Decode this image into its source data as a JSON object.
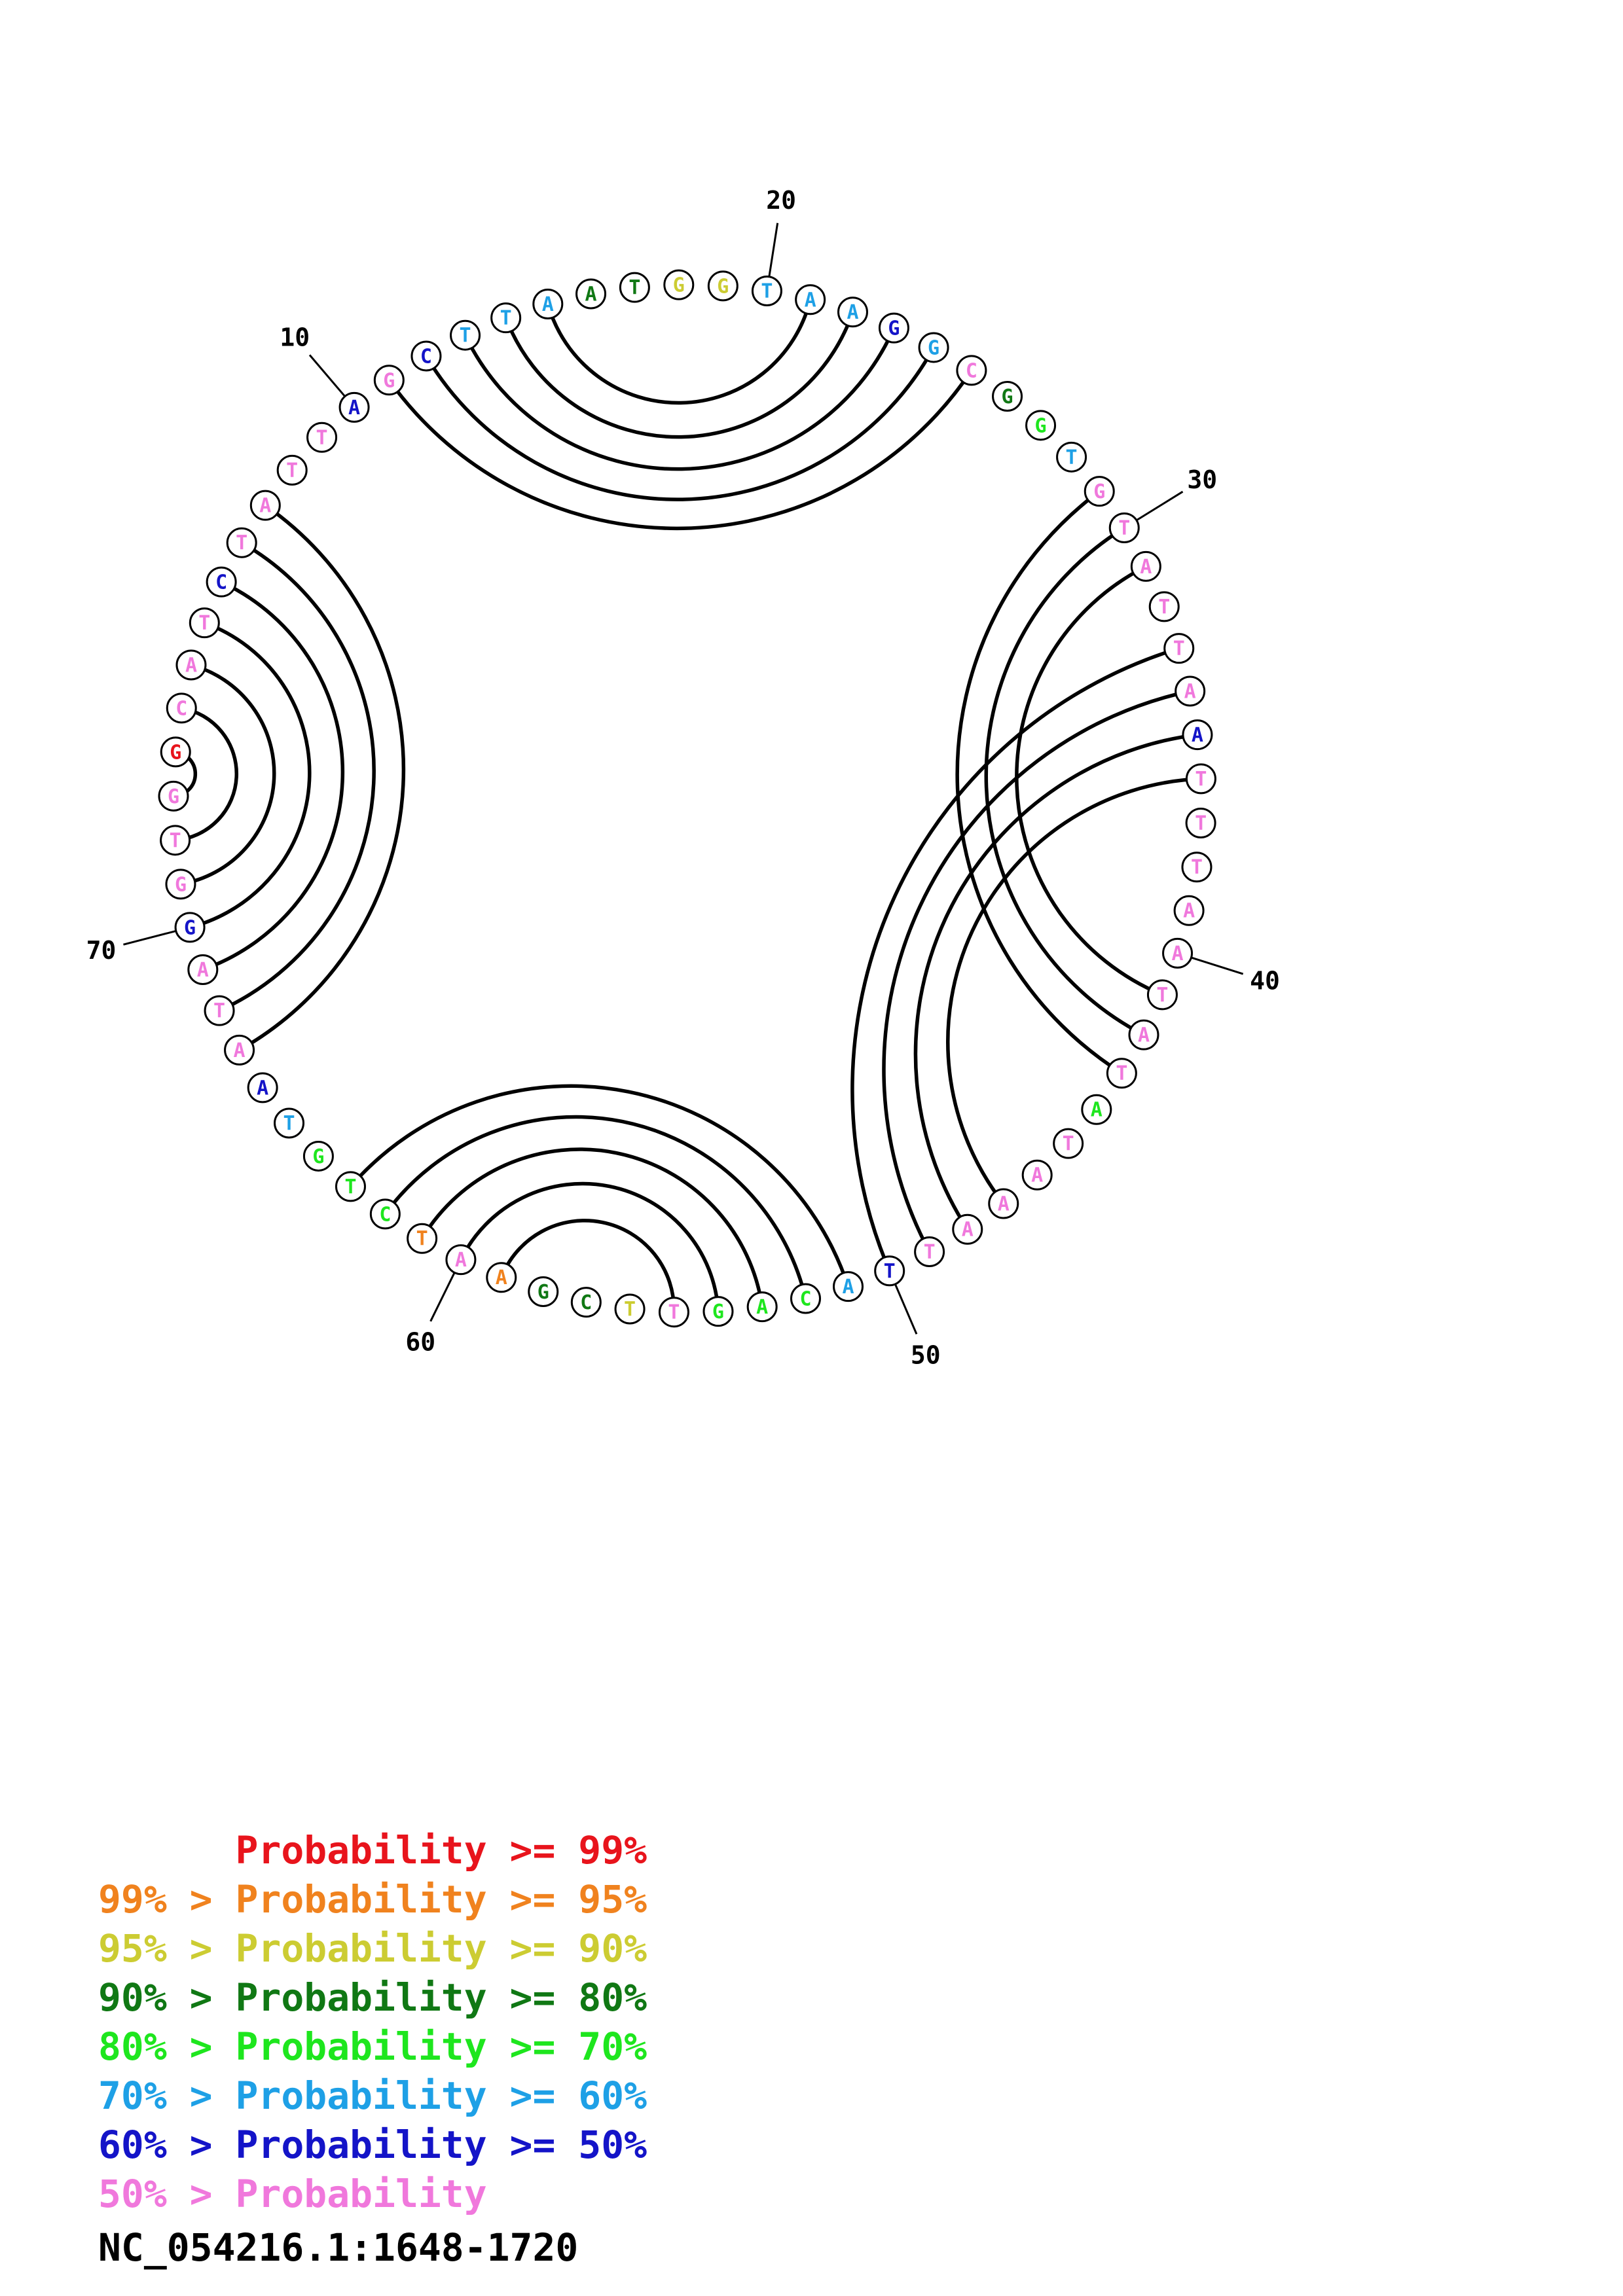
{
  "diagram": {
    "sequence_id": "NC_054216.1:1648-1720",
    "colors": {
      "red": "#e8141c",
      "orange": "#f0821e",
      "yellow": "#cccc32",
      "dkgreen": "#107814",
      "green": "#1ee61e",
      "cyan": "#1ea0e6",
      "blue": "#1414c8",
      "pink": "#f078dc"
    },
    "nucleotides": [
      {
        "base": "G",
        "color": "red"
      },
      {
        "base": "C",
        "color": "pink"
      },
      {
        "base": "A",
        "color": "pink"
      },
      {
        "base": "T",
        "color": "pink"
      },
      {
        "base": "C",
        "color": "blue"
      },
      {
        "base": "T",
        "color": "pink"
      },
      {
        "base": "A",
        "color": "pink"
      },
      {
        "base": "T",
        "color": "pink"
      },
      {
        "base": "T",
        "color": "pink"
      },
      {
        "base": "A",
        "color": "blue"
      },
      {
        "base": "G",
        "color": "pink"
      },
      {
        "base": "C",
        "color": "blue"
      },
      {
        "base": "T",
        "color": "cyan"
      },
      {
        "base": "T",
        "color": "cyan"
      },
      {
        "base": "A",
        "color": "cyan"
      },
      {
        "base": "A",
        "color": "dkgreen"
      },
      {
        "base": "T",
        "color": "dkgreen"
      },
      {
        "base": "G",
        "color": "yellow"
      },
      {
        "base": "G",
        "color": "yellow"
      },
      {
        "base": "T",
        "color": "cyan"
      },
      {
        "base": "A",
        "color": "cyan"
      },
      {
        "base": "A",
        "color": "cyan"
      },
      {
        "base": "G",
        "color": "blue"
      },
      {
        "base": "G",
        "color": "cyan"
      },
      {
        "base": "C",
        "color": "pink"
      },
      {
        "base": "G",
        "color": "dkgreen"
      },
      {
        "base": "G",
        "color": "green"
      },
      {
        "base": "T",
        "color": "cyan"
      },
      {
        "base": "G",
        "color": "pink"
      },
      {
        "base": "T",
        "color": "pink"
      },
      {
        "base": "A",
        "color": "pink"
      },
      {
        "base": "T",
        "color": "pink"
      },
      {
        "base": "T",
        "color": "pink"
      },
      {
        "base": "A",
        "color": "pink"
      },
      {
        "base": "A",
        "color": "blue"
      },
      {
        "base": "T",
        "color": "pink"
      },
      {
        "base": "T",
        "color": "pink"
      },
      {
        "base": "T",
        "color": "pink"
      },
      {
        "base": "A",
        "color": "pink"
      },
      {
        "base": "A",
        "color": "pink"
      },
      {
        "base": "T",
        "color": "pink"
      },
      {
        "base": "A",
        "color": "pink"
      },
      {
        "base": "T",
        "color": "pink"
      },
      {
        "base": "A",
        "color": "green"
      },
      {
        "base": "T",
        "color": "pink"
      },
      {
        "base": "A",
        "color": "pink"
      },
      {
        "base": "A",
        "color": "pink"
      },
      {
        "base": "A",
        "color": "pink"
      },
      {
        "base": "T",
        "color": "pink"
      },
      {
        "base": "T",
        "color": "blue"
      },
      {
        "base": "A",
        "color": "cyan"
      },
      {
        "base": "C",
        "color": "green"
      },
      {
        "base": "A",
        "color": "green"
      },
      {
        "base": "G",
        "color": "green"
      },
      {
        "base": "T",
        "color": "pink"
      },
      {
        "base": "T",
        "color": "yellow"
      },
      {
        "base": "C",
        "color": "dkgreen"
      },
      {
        "base": "G",
        "color": "dkgreen"
      },
      {
        "base": "A",
        "color": "orange"
      },
      {
        "base": "A",
        "color": "pink"
      },
      {
        "base": "T",
        "color": "orange"
      },
      {
        "base": "C",
        "color": "green"
      },
      {
        "base": "T",
        "color": "green"
      },
      {
        "base": "G",
        "color": "green"
      },
      {
        "base": "T",
        "color": "cyan"
      },
      {
        "base": "A",
        "color": "blue"
      },
      {
        "base": "A",
        "color": "pink"
      },
      {
        "base": "T",
        "color": "pink"
      },
      {
        "base": "A",
        "color": "pink"
      },
      {
        "base": "G",
        "color": "blue"
      },
      {
        "base": "G",
        "color": "pink"
      },
      {
        "base": "T",
        "color": "pink"
      },
      {
        "base": "G",
        "color": "pink"
      }
    ],
    "pairs": [
      [
        1,
        73
      ],
      [
        2,
        72
      ],
      [
        3,
        71
      ],
      [
        4,
        70
      ],
      [
        5,
        69
      ],
      [
        6,
        68
      ],
      [
        7,
        67
      ],
      [
        11,
        25
      ],
      [
        12,
        24
      ],
      [
        13,
        23
      ],
      [
        14,
        22
      ],
      [
        15,
        21
      ],
      [
        29,
        43
      ],
      [
        30,
        42
      ],
      [
        31,
        41
      ],
      [
        33,
        50
      ],
      [
        34,
        49
      ],
      [
        35,
        48
      ],
      [
        36,
        47
      ],
      [
        51,
        63
      ],
      [
        52,
        62
      ],
      [
        53,
        61
      ],
      [
        54,
        60
      ],
      [
        55,
        59
      ]
    ],
    "ticks": [
      "10",
      "20",
      "30",
      "40",
      "50",
      "60",
      "70"
    ],
    "legend": [
      {
        "text": "      Probability >= 99%",
        "color": "red"
      },
      {
        "text": "99% > Probability >= 95%",
        "color": "orange"
      },
      {
        "text": "95% > Probability >= 90%",
        "color": "yellow"
      },
      {
        "text": "90% > Probability >= 80%",
        "color": "dkgreen"
      },
      {
        "text": "80% > Probability >= 70%",
        "color": "green"
      },
      {
        "text": "70% > Probability >= 60%",
        "color": "cyan"
      },
      {
        "text": "60% > Probability >= 50%",
        "color": "blue"
      },
      {
        "text": "50% > Probability",
        "color": "pink"
      }
    ]
  }
}
